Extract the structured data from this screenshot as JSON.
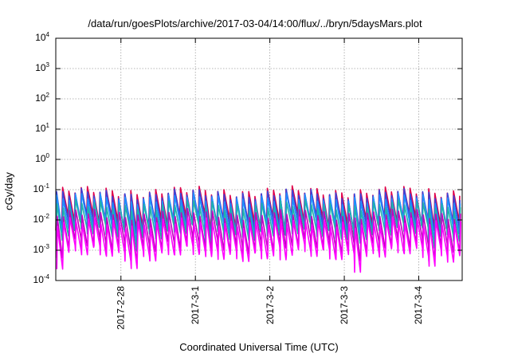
{
  "chart_data": {
    "type": "line",
    "title": "/data/run/goesPlots/archive/2017-03-04/14:00/flux/../bryn/5daysMars.plot",
    "xlabel": "Coordinated Universal Time (UTC)",
    "ylabel": "cGy/day",
    "y_scale": "log",
    "ylim": [
      0.0001,
      10000
    ],
    "y_ticks": [
      {
        "value": 10000,
        "base": "10",
        "exp": "4"
      },
      {
        "value": 1000,
        "base": "10",
        "exp": "3"
      },
      {
        "value": 100,
        "base": "10",
        "exp": "2"
      },
      {
        "value": 10,
        "base": "10",
        "exp": "1"
      },
      {
        "value": 1,
        "base": "10",
        "exp": "0"
      },
      {
        "value": 0.1,
        "base": "10",
        "exp": "-1"
      },
      {
        "value": 0.01,
        "base": "10",
        "exp": "-2"
      },
      {
        "value": 0.001,
        "base": "10",
        "exp": "-3"
      },
      {
        "value": 0.0001,
        "base": "10",
        "exp": "-4"
      }
    ],
    "xlim": [
      "2017-02-27 03:00",
      "2017-03-04 14:00"
    ],
    "x_ticks": [
      {
        "value": "2017-02-28",
        "label": "2017-2-28"
      },
      {
        "value": "2017-03-01",
        "label": "2017-3-1"
      },
      {
        "value": "2017-03-02",
        "label": "2017-3-2"
      },
      {
        "value": "2017-03-03",
        "label": "2017-3-3"
      },
      {
        "value": "2017-03-04",
        "label": "2017-3-4"
      }
    ],
    "grid": true,
    "legend": "none",
    "pattern": "sawtooth, about 2 hour period: sharp rise to peak then decay to trough",
    "series": [
      {
        "color": "#e0004a",
        "peak": 0.085,
        "trough": 0.01
      },
      {
        "color": "#3c44d8",
        "peak": 0.07,
        "trough": 0.008
      },
      {
        "color": "#1e90ff",
        "peak": 0.05,
        "trough": 0.006
      },
      {
        "color": "#20b2aa",
        "peak": 0.03,
        "trough": 0.004
      },
      {
        "color": "#c000c0",
        "peak": 0.015,
        "trough": 0.0015
      },
      {
        "color": "#ff00ff",
        "peak": 0.008,
        "trough": 0.0008
      }
    ]
  }
}
